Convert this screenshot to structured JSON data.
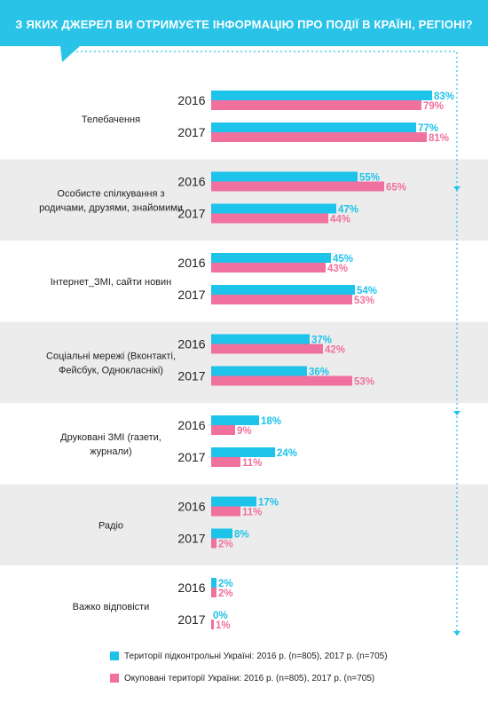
{
  "title": "З ЯКИХ ДЖЕРЕЛ ВИ ОТРИМУЄТЕ ІНФОРМАЦІЮ ПРО ПОДІЇ В КРАЇНІ, РЕГІОНІ?",
  "colors": {
    "banner": "#29c3e8",
    "controlled": "#1ec3ea",
    "occupied": "#f0709e",
    "band": "#ececec",
    "arrow": "#1ec3ea"
  },
  "legend": {
    "controlled": "Території підконтрольні Україні:  2016 р. (n=805), 2017 р. (n=705)",
    "occupied": "Окуповані території України: 2016 р. (n=805), 2017 р. (n=705)"
  },
  "chart_data": {
    "type": "bar",
    "orientation": "horizontal",
    "value_suffix": "%",
    "xlim": [
      0,
      100
    ],
    "series_order": [
      "controlled",
      "occupied"
    ],
    "groups": [
      {
        "label": "Телебачення",
        "years": [
          {
            "year": "2016",
            "controlled": 83,
            "occupied": 79
          },
          {
            "year": "2017",
            "controlled": 77,
            "occupied": 81
          }
        ]
      },
      {
        "label": "Особисте спілкування з родичами, друзями, знайомими",
        "years": [
          {
            "year": "2016",
            "controlled": 55,
            "occupied": 65
          },
          {
            "year": "2017",
            "controlled": 47,
            "occupied": 44
          }
        ]
      },
      {
        "label": "Інтернет_ЗМІ, сайти новин",
        "years": [
          {
            "year": "2016",
            "controlled": 45,
            "occupied": 43
          },
          {
            "year": "2017",
            "controlled": 54,
            "occupied": 53
          }
        ]
      },
      {
        "label": "Соціальні мережі (Вконтакті, Фейсбук, Однокласнікі)",
        "years": [
          {
            "year": "2016",
            "controlled": 37,
            "occupied": 42
          },
          {
            "year": "2017",
            "controlled": 36,
            "occupied": 53
          }
        ]
      },
      {
        "label": "Друковані ЗМІ (газети, журнали)",
        "years": [
          {
            "year": "2016",
            "controlled": 18,
            "occupied": 9
          },
          {
            "year": "2017",
            "controlled": 24,
            "occupied": 11
          }
        ]
      },
      {
        "label": "Радіо",
        "years": [
          {
            "year": "2016",
            "controlled": 17,
            "occupied": 11
          },
          {
            "year": "2017",
            "controlled": 8,
            "occupied": 2
          }
        ]
      },
      {
        "label": "Важко відповісти",
        "years": [
          {
            "year": "2016",
            "controlled": 2,
            "occupied": 2
          },
          {
            "year": "2017",
            "controlled": 0,
            "occupied": 1
          }
        ]
      }
    ]
  }
}
